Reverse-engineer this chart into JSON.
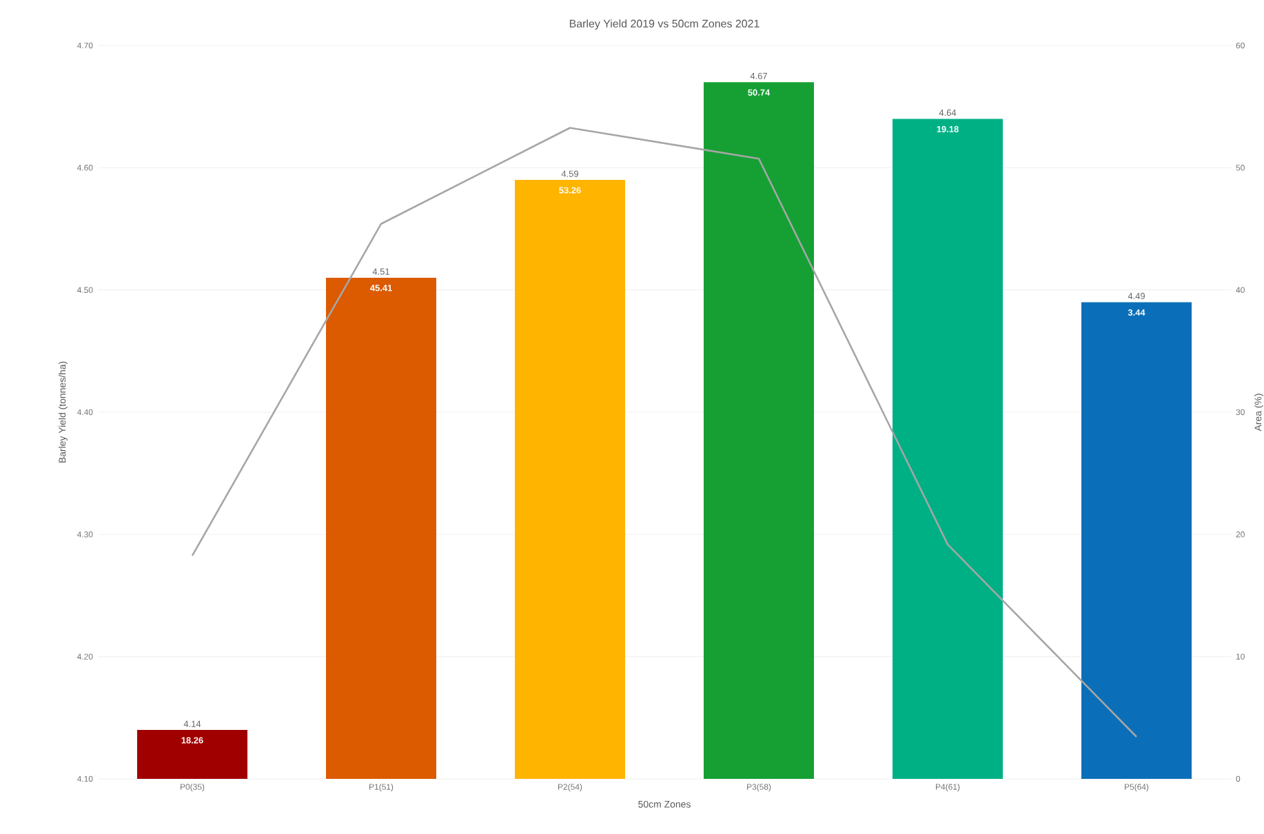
{
  "chart_data": {
    "type": "bar",
    "title": "Barley Yield 2019 vs 50cm Zones 2021",
    "xlabel": "50cm Zones",
    "ylabel": "Barley Yield (tonnes/ha)",
    "y2label": "Area (%)",
    "categories": [
      "P0(35)",
      "P1(51)",
      "P2(54)",
      "P3(58)",
      "P4(61)",
      "P5(64)"
    ],
    "series": [
      {
        "colors": [
          "#a00000",
          "#dc5a00",
          "#ffb400",
          "#16a034",
          "#00b085",
          "#0a6fb8"
        ],
        "values": [
          4.14,
          4.51,
          4.59,
          4.67,
          4.64,
          4.49
        ],
        "value_labels": [
          "4.14",
          "4.51",
          "4.59",
          "4.67",
          "4.64",
          "4.49"
        ]
      },
      {
        "type": "line",
        "axis": "y2",
        "color": "#a6a6a6",
        "values": [
          18.26,
          45.41,
          53.26,
          50.74,
          19.18,
          3.44
        ]
      }
    ],
    "annotations": [
      {
        "text": "18.26",
        "x": "P0(35)",
        "y": 4.14
      },
      {
        "text": "45.41",
        "x": "P1(51)",
        "y": 4.51
      },
      {
        "text": "53.26",
        "x": "P2(54)",
        "y": 4.59
      },
      {
        "text": "50.74",
        "x": "P3(58)",
        "y": 4.67
      },
      {
        "text": "19.18",
        "x": "P4(61)",
        "y": 4.64
      },
      {
        "text": "3.44",
        "x": "P5(64)",
        "y": 4.49
      }
    ],
    "grid": "y",
    "marker": "none",
    "line_style": "solid",
    "ylim": [
      4.1,
      4.7
    ],
    "yticks": [
      {
        "value": 4.1,
        "label": "4.10"
      },
      {
        "value": 4.2,
        "label": "4.20"
      },
      {
        "value": 4.3,
        "label": "4.30"
      },
      {
        "value": 4.4,
        "label": "4.40"
      },
      {
        "value": 4.5,
        "label": "4.50"
      },
      {
        "value": 4.6,
        "label": "4.60"
      },
      {
        "value": 4.7,
        "label": "4.70"
      }
    ],
    "y2lim": [
      0,
      60
    ],
    "y2ticks": [
      0,
      10,
      20,
      30,
      40,
      50,
      60
    ]
  }
}
